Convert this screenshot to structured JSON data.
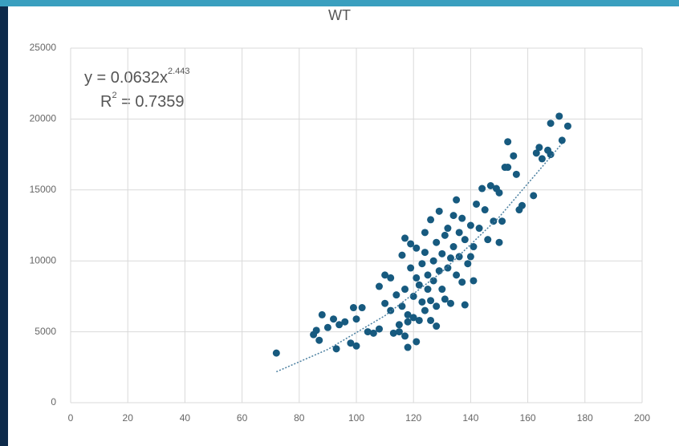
{
  "chart_data": {
    "type": "scatter",
    "title": "WT",
    "equation": {
      "base": "y = 0.0632x",
      "exponent": "2.443"
    },
    "r_squared": {
      "base": "R",
      "exponent": "2",
      "rest": " = 0.7359"
    },
    "xlim": [
      0,
      200
    ],
    "xticks": [
      0,
      20,
      40,
      60,
      80,
      100,
      120,
      140,
      160,
      180,
      200
    ],
    "ylim": [
      0,
      25000
    ],
    "yticks": [
      0,
      5000,
      10000,
      15000,
      20000,
      25000
    ],
    "grid": true,
    "color": "#175a7f",
    "series": [
      {
        "color": "#175a7f",
        "x": [
          72,
          85,
          86,
          87,
          88,
          90,
          92,
          93,
          94,
          96,
          98,
          99,
          100,
          100,
          102,
          104,
          106,
          108,
          108,
          110,
          110,
          112,
          112,
          113,
          114,
          115,
          115,
          116,
          116,
          117,
          117,
          118,
          118,
          119,
          119,
          120,
          120,
          121,
          121,
          122,
          122,
          123,
          123,
          124,
          124,
          124,
          125,
          125,
          126,
          126,
          127,
          127,
          128,
          128,
          129,
          129,
          130,
          130,
          131,
          131,
          132,
          132,
          133,
          133,
          134,
          134,
          135,
          135,
          136,
          136,
          137,
          137,
          138,
          139,
          140,
          140,
          141,
          141,
          142,
          143,
          144,
          145,
          146,
          147,
          148,
          149,
          150,
          150,
          151,
          152,
          153,
          153,
          155,
          156,
          157,
          158,
          162,
          163,
          164,
          165,
          167,
          168,
          168,
          171,
          172,
          174,
          138,
          128,
          118,
          126,
          121,
          117
        ],
        "values": [
          3500,
          4800,
          5100,
          4400,
          6200,
          5300,
          5900,
          3800,
          5500,
          5700,
          4200,
          6700,
          4000,
          5900,
          6700,
          5000,
          4900,
          5200,
          8200,
          7000,
          9000,
          6500,
          8800,
          4900,
          7600,
          5500,
          5000,
          6800,
          10400,
          11600,
          8000,
          5700,
          3900,
          9500,
          11200,
          6000,
          7500,
          8800,
          10900,
          5800,
          8300,
          9800,
          7100,
          6500,
          10600,
          12000,
          8000,
          9000,
          12900,
          7200,
          10000,
          8600,
          11300,
          6800,
          9300,
          13500,
          10500,
          8000,
          11800,
          7300,
          9500,
          12300,
          10200,
          7000,
          11000,
          13200,
          9000,
          14300,
          12000,
          10300,
          8500,
          13000,
          11500,
          9800,
          12500,
          10300,
          11000,
          8600,
          14000,
          12300,
          15100,
          13600,
          11500,
          15300,
          12800,
          15100,
          14800,
          11300,
          12800,
          16600,
          18400,
          16600,
          17400,
          16100,
          13600,
          13900,
          14600,
          17600,
          18000,
          17200,
          17800,
          17500,
          19700,
          20200,
          18500,
          19500,
          6900,
          5400,
          6200,
          5800,
          4300,
          4700
        ]
      }
    ],
    "trendline": {
      "x": [
        72,
        90,
        110,
        130,
        150,
        172
      ],
      "values": [
        2180,
        3755,
        6134,
        9224,
        13089,
        18279
      ]
    }
  }
}
